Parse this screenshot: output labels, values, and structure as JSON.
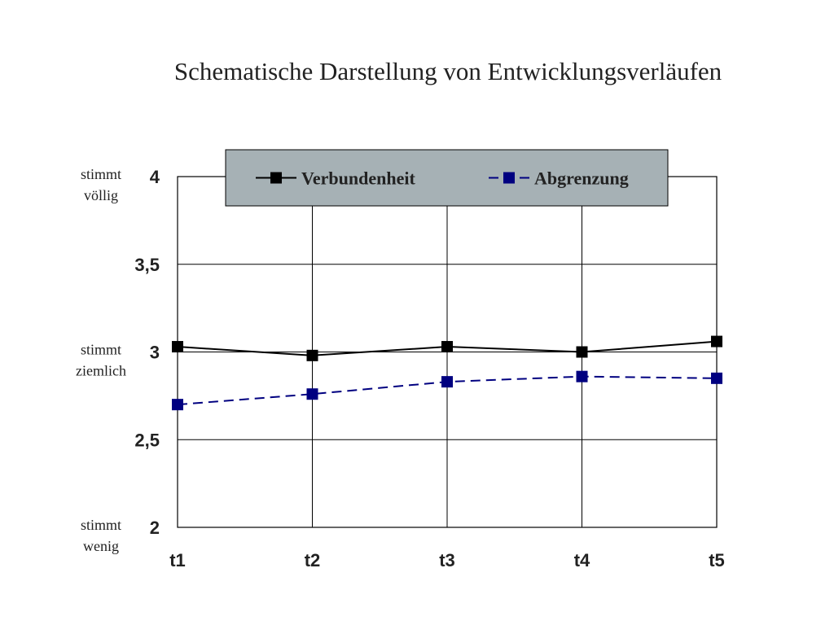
{
  "chart_data": {
    "type": "line",
    "title": "Schematische Darstellung von Entwicklungsverläufen",
    "categories": [
      "t1",
      "t2",
      "t3",
      "t4",
      "t5"
    ],
    "ylim": [
      2,
      4
    ],
    "yticks": [
      {
        "value": 2,
        "label": "2"
      },
      {
        "value": 2.5,
        "label": "2,5"
      },
      {
        "value": 3,
        "label": "3"
      },
      {
        "value": 3.5,
        "label": "3,5"
      },
      {
        "value": 4,
        "label": "4"
      }
    ],
    "y_annotations": [
      {
        "value": 4,
        "lines": [
          "stimmt",
          "völlig"
        ]
      },
      {
        "value": 3,
        "lines": [
          "stimmt",
          "ziemlich"
        ]
      },
      {
        "value": 2,
        "lines": [
          "stimmt",
          "wenig"
        ]
      }
    ],
    "grid": {
      "horizontal": true,
      "vertical": true
    },
    "legend": {
      "placement": "top-center",
      "background": "#a6b1b5"
    },
    "series": [
      {
        "name": "Verbundenheit",
        "values": [
          3.03,
          2.98,
          3.03,
          3.0,
          3.06
        ],
        "color": "#000000",
        "dash": "solid",
        "marker": "square"
      },
      {
        "name": "Abgrenzung",
        "values": [
          2.7,
          2.76,
          2.83,
          2.86,
          2.85
        ],
        "color": "#000080",
        "dash": "dashed",
        "marker": "square"
      }
    ]
  }
}
